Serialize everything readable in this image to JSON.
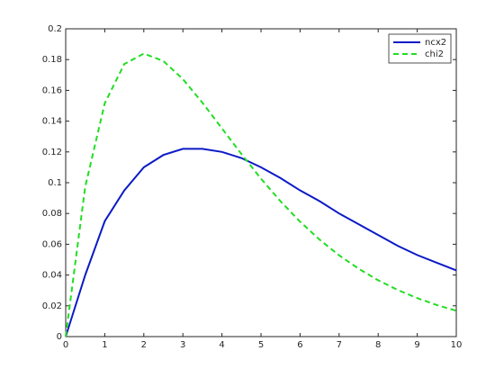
{
  "chart_data": {
    "type": "line",
    "x": [
      0,
      0.5,
      1,
      1.5,
      2,
      2.5,
      3,
      3.5,
      4,
      4.5,
      5,
      5.5,
      6,
      6.5,
      7,
      7.5,
      8,
      8.5,
      9,
      9.5,
      10
    ],
    "series": [
      {
        "name": "ncx2",
        "color": "#0b1ac6",
        "line_style": "solid",
        "values": [
          0,
          0.04,
          0.075,
          0.095,
          0.11,
          0.118,
          0.122,
          0.122,
          0.12,
          0.116,
          0.11,
          0.103,
          0.095,
          0.088,
          0.08,
          0.073,
          0.066,
          0.059,
          0.053,
          0.048,
          0.043
        ]
      },
      {
        "name": "chi2",
        "color": "#22dd22",
        "line_style": "dashed",
        "values": [
          0,
          0.0974,
          0.1516,
          0.1771,
          0.1839,
          0.1791,
          0.1673,
          0.152,
          0.1353,
          0.1186,
          0.1026,
          0.0879,
          0.0747,
          0.063,
          0.0528,
          0.0441,
          0.0366,
          0.0303,
          0.025,
          0.0205,
          0.0168
        ]
      }
    ],
    "xlim": [
      0,
      10
    ],
    "xticks": [
      0,
      1,
      2,
      3,
      4,
      5,
      6,
      7,
      8,
      9,
      10
    ],
    "ylim": [
      0,
      0.2
    ],
    "yticks": [
      0,
      0.02,
      0.04,
      0.06,
      0.08,
      0.1,
      0.12,
      0.14,
      0.16,
      0.18,
      0.2
    ],
    "grid": false,
    "legend": "northeast"
  }
}
